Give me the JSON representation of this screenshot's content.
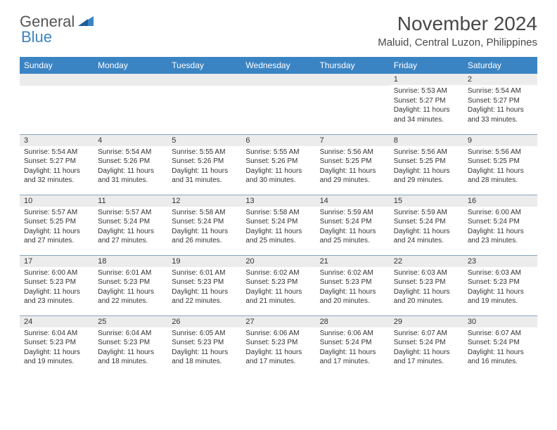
{
  "logo": {
    "text_general": "General",
    "text_blue": "Blue",
    "color_general": "#555555",
    "color_blue": "#3b84c4"
  },
  "title": "November 2024",
  "location": "Maluid, Central Luzon, Philippines",
  "colors": {
    "header_bg": "#3b84c4",
    "header_fg": "#ffffff",
    "daynum_bg": "#ececec",
    "cell_border": "#8aa6bd",
    "text": "#333333",
    "title_color": "#484848",
    "background": "#ffffff"
  },
  "typography": {
    "title_fontsize": 28,
    "location_fontsize": 15,
    "weekday_fontsize": 12,
    "daynum_fontsize": 11,
    "body_fontsize": 10
  },
  "weekdays": [
    "Sunday",
    "Monday",
    "Tuesday",
    "Wednesday",
    "Thursday",
    "Friday",
    "Saturday"
  ],
  "weeks": [
    [
      {
        "day": "",
        "sunrise": "",
        "sunset": "",
        "daylight": ""
      },
      {
        "day": "",
        "sunrise": "",
        "sunset": "",
        "daylight": ""
      },
      {
        "day": "",
        "sunrise": "",
        "sunset": "",
        "daylight": ""
      },
      {
        "day": "",
        "sunrise": "",
        "sunset": "",
        "daylight": ""
      },
      {
        "day": "",
        "sunrise": "",
        "sunset": "",
        "daylight": ""
      },
      {
        "day": "1",
        "sunrise": "Sunrise: 5:53 AM",
        "sunset": "Sunset: 5:27 PM",
        "daylight": "Daylight: 11 hours and 34 minutes."
      },
      {
        "day": "2",
        "sunrise": "Sunrise: 5:54 AM",
        "sunset": "Sunset: 5:27 PM",
        "daylight": "Daylight: 11 hours and 33 minutes."
      }
    ],
    [
      {
        "day": "3",
        "sunrise": "Sunrise: 5:54 AM",
        "sunset": "Sunset: 5:27 PM",
        "daylight": "Daylight: 11 hours and 32 minutes."
      },
      {
        "day": "4",
        "sunrise": "Sunrise: 5:54 AM",
        "sunset": "Sunset: 5:26 PM",
        "daylight": "Daylight: 11 hours and 31 minutes."
      },
      {
        "day": "5",
        "sunrise": "Sunrise: 5:55 AM",
        "sunset": "Sunset: 5:26 PM",
        "daylight": "Daylight: 11 hours and 31 minutes."
      },
      {
        "day": "6",
        "sunrise": "Sunrise: 5:55 AM",
        "sunset": "Sunset: 5:26 PM",
        "daylight": "Daylight: 11 hours and 30 minutes."
      },
      {
        "day": "7",
        "sunrise": "Sunrise: 5:56 AM",
        "sunset": "Sunset: 5:25 PM",
        "daylight": "Daylight: 11 hours and 29 minutes."
      },
      {
        "day": "8",
        "sunrise": "Sunrise: 5:56 AM",
        "sunset": "Sunset: 5:25 PM",
        "daylight": "Daylight: 11 hours and 29 minutes."
      },
      {
        "day": "9",
        "sunrise": "Sunrise: 5:56 AM",
        "sunset": "Sunset: 5:25 PM",
        "daylight": "Daylight: 11 hours and 28 minutes."
      }
    ],
    [
      {
        "day": "10",
        "sunrise": "Sunrise: 5:57 AM",
        "sunset": "Sunset: 5:25 PM",
        "daylight": "Daylight: 11 hours and 27 minutes."
      },
      {
        "day": "11",
        "sunrise": "Sunrise: 5:57 AM",
        "sunset": "Sunset: 5:24 PM",
        "daylight": "Daylight: 11 hours and 27 minutes."
      },
      {
        "day": "12",
        "sunrise": "Sunrise: 5:58 AM",
        "sunset": "Sunset: 5:24 PM",
        "daylight": "Daylight: 11 hours and 26 minutes."
      },
      {
        "day": "13",
        "sunrise": "Sunrise: 5:58 AM",
        "sunset": "Sunset: 5:24 PM",
        "daylight": "Daylight: 11 hours and 25 minutes."
      },
      {
        "day": "14",
        "sunrise": "Sunrise: 5:59 AM",
        "sunset": "Sunset: 5:24 PM",
        "daylight": "Daylight: 11 hours and 25 minutes."
      },
      {
        "day": "15",
        "sunrise": "Sunrise: 5:59 AM",
        "sunset": "Sunset: 5:24 PM",
        "daylight": "Daylight: 11 hours and 24 minutes."
      },
      {
        "day": "16",
        "sunrise": "Sunrise: 6:00 AM",
        "sunset": "Sunset: 5:24 PM",
        "daylight": "Daylight: 11 hours and 23 minutes."
      }
    ],
    [
      {
        "day": "17",
        "sunrise": "Sunrise: 6:00 AM",
        "sunset": "Sunset: 5:23 PM",
        "daylight": "Daylight: 11 hours and 23 minutes."
      },
      {
        "day": "18",
        "sunrise": "Sunrise: 6:01 AM",
        "sunset": "Sunset: 5:23 PM",
        "daylight": "Daylight: 11 hours and 22 minutes."
      },
      {
        "day": "19",
        "sunrise": "Sunrise: 6:01 AM",
        "sunset": "Sunset: 5:23 PM",
        "daylight": "Daylight: 11 hours and 22 minutes."
      },
      {
        "day": "20",
        "sunrise": "Sunrise: 6:02 AM",
        "sunset": "Sunset: 5:23 PM",
        "daylight": "Daylight: 11 hours and 21 minutes."
      },
      {
        "day": "21",
        "sunrise": "Sunrise: 6:02 AM",
        "sunset": "Sunset: 5:23 PM",
        "daylight": "Daylight: 11 hours and 20 minutes."
      },
      {
        "day": "22",
        "sunrise": "Sunrise: 6:03 AM",
        "sunset": "Sunset: 5:23 PM",
        "daylight": "Daylight: 11 hours and 20 minutes."
      },
      {
        "day": "23",
        "sunrise": "Sunrise: 6:03 AM",
        "sunset": "Sunset: 5:23 PM",
        "daylight": "Daylight: 11 hours and 19 minutes."
      }
    ],
    [
      {
        "day": "24",
        "sunrise": "Sunrise: 6:04 AM",
        "sunset": "Sunset: 5:23 PM",
        "daylight": "Daylight: 11 hours and 19 minutes."
      },
      {
        "day": "25",
        "sunrise": "Sunrise: 6:04 AM",
        "sunset": "Sunset: 5:23 PM",
        "daylight": "Daylight: 11 hours and 18 minutes."
      },
      {
        "day": "26",
        "sunrise": "Sunrise: 6:05 AM",
        "sunset": "Sunset: 5:23 PM",
        "daylight": "Daylight: 11 hours and 18 minutes."
      },
      {
        "day": "27",
        "sunrise": "Sunrise: 6:06 AM",
        "sunset": "Sunset: 5:23 PM",
        "daylight": "Daylight: 11 hours and 17 minutes."
      },
      {
        "day": "28",
        "sunrise": "Sunrise: 6:06 AM",
        "sunset": "Sunset: 5:24 PM",
        "daylight": "Daylight: 11 hours and 17 minutes."
      },
      {
        "day": "29",
        "sunrise": "Sunrise: 6:07 AM",
        "sunset": "Sunset: 5:24 PM",
        "daylight": "Daylight: 11 hours and 17 minutes."
      },
      {
        "day": "30",
        "sunrise": "Sunrise: 6:07 AM",
        "sunset": "Sunset: 5:24 PM",
        "daylight": "Daylight: 11 hours and 16 minutes."
      }
    ]
  ]
}
